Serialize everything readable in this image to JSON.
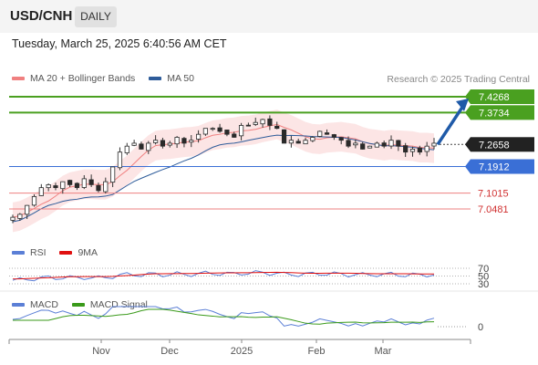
{
  "header": {
    "symbol": "USD/CNH",
    "timeframe": "DAILY"
  },
  "datetime": "Tuesday, March 25, 2025 6:40:56 AM CET",
  "legend_price": [
    {
      "label": "MA 20 + Bollinger Bands",
      "color": "#f08080"
    },
    {
      "label": "MA 50",
      "color": "#2e5c9a"
    }
  ],
  "credit": "Research © 2025 Trading Central",
  "legend_rsi": [
    {
      "label": "RSI",
      "color": "#5b7fd6"
    },
    {
      "label": "9MA",
      "color": "#e01010"
    }
  ],
  "legend_macd": [
    {
      "label": "MACD",
      "color": "#5b7fd6"
    },
    {
      "label": "MACD Signal",
      "color": "#3a9a1a"
    }
  ],
  "colors": {
    "resistance": "#4aa020",
    "support_blue": "#3a6fd6",
    "support_red": "#ee8080",
    "bull": "#2a2a2a",
    "bear": "#2a2a2a",
    "band_fill": "#fbdcdc",
    "arrow": "#1f5aa8"
  },
  "chart_data": {
    "type": "candlestick",
    "x_labels": [
      "Nov",
      "Dec",
      "2025",
      "Feb",
      "Mar"
    ],
    "last_price": "7.2658",
    "levels": [
      {
        "value": 7.4268,
        "label": "7.4268",
        "kind": "resistance"
      },
      {
        "value": 7.3734,
        "label": "7.3734",
        "kind": "resistance"
      },
      {
        "value": 7.1912,
        "label": "7.1912",
        "kind": "support_blue"
      },
      {
        "value": 7.1015,
        "label": "7.1015",
        "kind": "support_red"
      },
      {
        "value": 7.0481,
        "label": "7.0481",
        "kind": "support_red"
      }
    ],
    "close_path": [
      7.02,
      7.03,
      7.06,
      7.09,
      7.12,
      7.13,
      7.12,
      7.14,
      7.13,
      7.12,
      7.15,
      7.13,
      7.11,
      7.14,
      7.19,
      7.24,
      7.26,
      7.27,
      7.25,
      7.27,
      7.28,
      7.26,
      7.27,
      7.29,
      7.27,
      7.28,
      7.3,
      7.32,
      7.32,
      7.31,
      7.3,
      7.29,
      7.33,
      7.33,
      7.34,
      7.35,
      7.33,
      7.32,
      7.27,
      7.28,
      7.27,
      7.28,
      7.29,
      7.31,
      7.3,
      7.29,
      7.28,
      7.26,
      7.27,
      7.25,
      7.26,
      7.27,
      7.26,
      7.28,
      7.26,
      7.24,
      7.25,
      7.24,
      7.26,
      7.27
    ],
    "projection_target": 7.4268,
    "rsi": {
      "levels": [
        70,
        50,
        30
      ]
    },
    "macd": {
      "levels": [
        0
      ]
    }
  }
}
